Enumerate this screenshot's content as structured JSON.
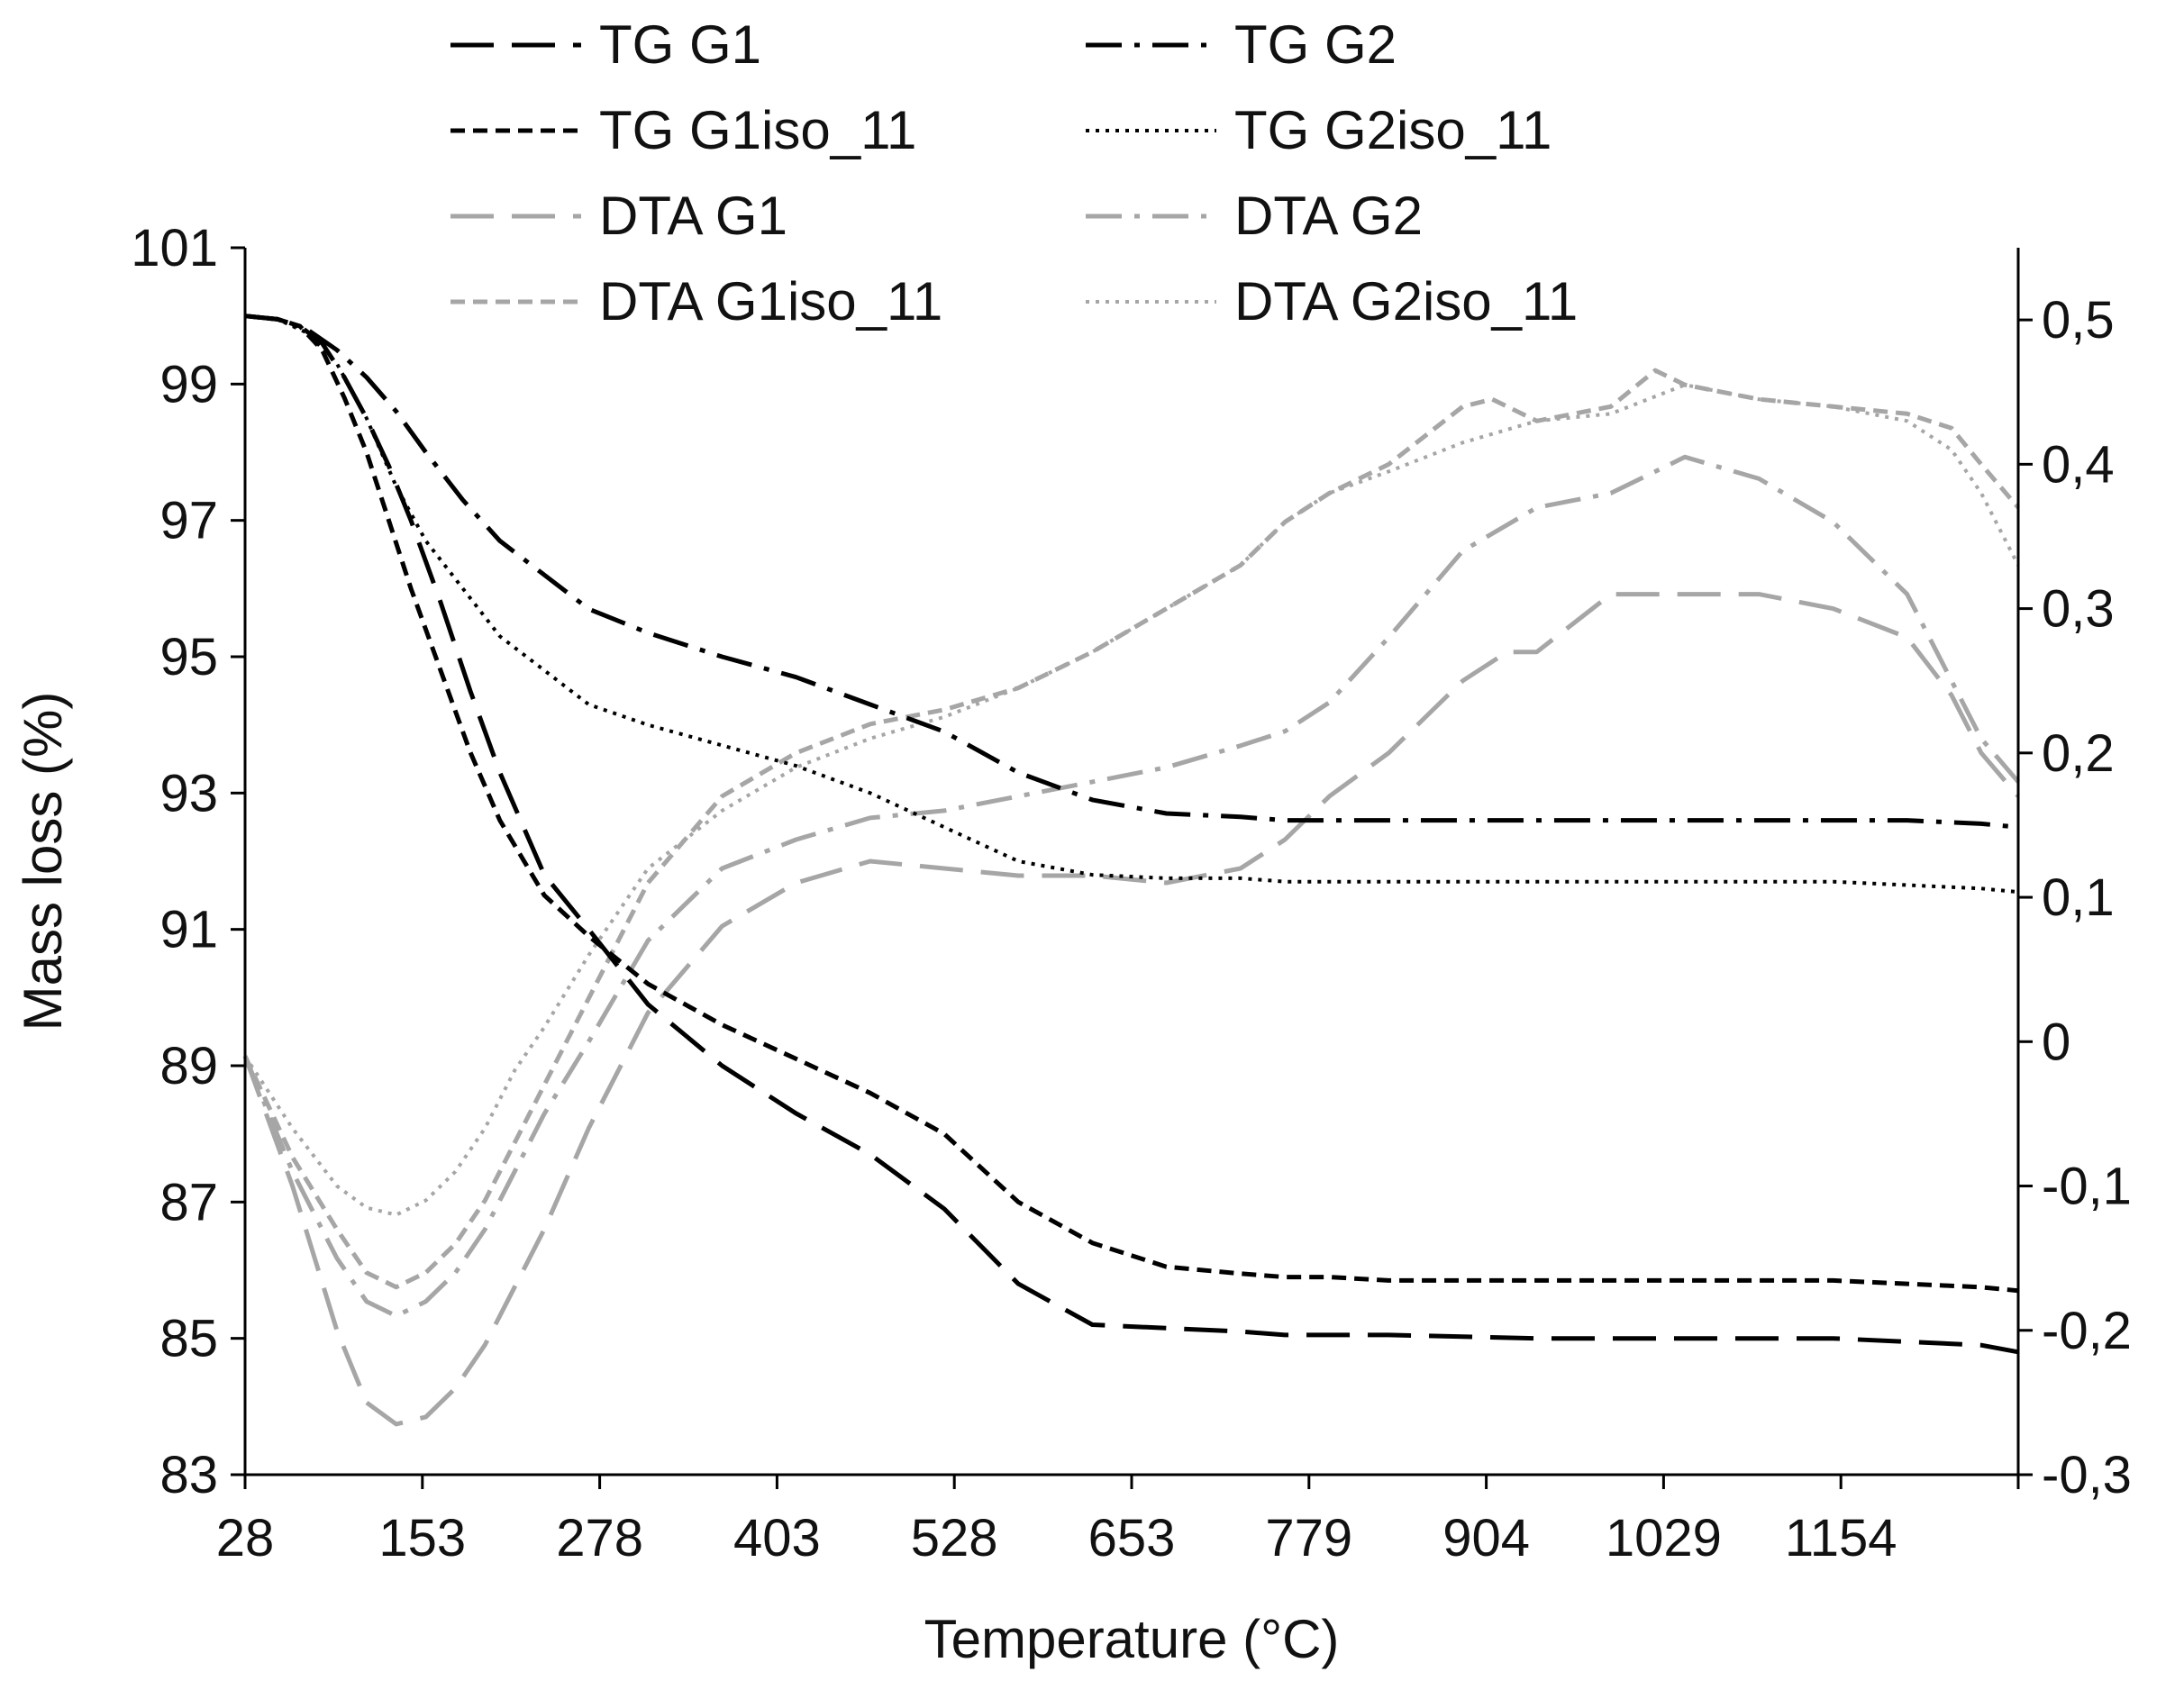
{
  "chart_data": {
    "type": "line",
    "title": "",
    "xlabel": "Temperature (°C)",
    "ylabel": "Mass loss (%)",
    "y2label": "",
    "xlim": [
      28,
      1225
    ],
    "ylim": [
      83,
      101
    ],
    "y2lim": [
      -0.3,
      0.55
    ],
    "x_ticks": [
      "28",
      "153",
      "278",
      "403",
      "528",
      "653",
      "779",
      "904",
      "1029",
      "1154"
    ],
    "y_ticks": [
      "83",
      "85",
      "87",
      "89",
      "91",
      "93",
      "95",
      "97",
      "99",
      "101"
    ],
    "y2_ticks": [
      "-0,3",
      "-0,2",
      "-0,1",
      "0",
      "0,1",
      "0,2",
      "0,3",
      "0,4",
      "0,5"
    ],
    "legend": "top",
    "grid": false,
    "series": [
      {
        "name": "TG G1",
        "axis": "left",
        "color": "#000000",
        "dash": "long",
        "x": [
          28,
          50,
          65,
          80,
          95,
          110,
          125,
          140,
          160,
          180,
          200,
          230,
          260,
          300,
          350,
          400,
          450,
          500,
          550,
          600,
          650,
          700,
          730,
          760,
          800,
          900,
          1000,
          1100,
          1150,
          1200,
          1225
        ],
        "y": [
          100,
          99.95,
          99.85,
          99.6,
          99.1,
          98.5,
          97.8,
          97,
          95.8,
          94.5,
          93.3,
          91.8,
          91.0,
          89.9,
          89.0,
          88.3,
          87.7,
          86.9,
          85.8,
          85.2,
          85.15,
          85.1,
          85.05,
          85.05,
          85.05,
          85.0,
          85.0,
          85.0,
          84.95,
          84.9,
          84.8
        ]
      },
      {
        "name": "TG G2",
        "axis": "left",
        "color": "#000000",
        "dash": "dashdot",
        "x": [
          28,
          50,
          70,
          90,
          110,
          130,
          150,
          175,
          200,
          230,
          260,
          300,
          350,
          400,
          450,
          500,
          550,
          600,
          650,
          700,
          730,
          760,
          800,
          900,
          1000,
          1100,
          1150,
          1200,
          1225
        ],
        "y": [
          100,
          99.95,
          99.8,
          99.5,
          99.1,
          98.6,
          98.0,
          97.3,
          96.7,
          96.2,
          95.7,
          95.35,
          95.0,
          94.7,
          94.3,
          93.9,
          93.3,
          92.9,
          92.7,
          92.65,
          92.6,
          92.6,
          92.6,
          92.6,
          92.6,
          92.6,
          92.6,
          92.55,
          92.5
        ]
      },
      {
        "name": "TG G1iso_11",
        "axis": "left",
        "color": "#000000",
        "dash": "short",
        "x": [
          28,
          50,
          65,
          80,
          95,
          110,
          125,
          140,
          160,
          180,
          200,
          230,
          260,
          300,
          350,
          400,
          450,
          500,
          550,
          600,
          650,
          700,
          730,
          760,
          800,
          900,
          1000,
          1100,
          1150,
          1200,
          1225
        ],
        "y": [
          100,
          99.95,
          99.85,
          99.5,
          98.8,
          98.0,
          97.0,
          96.0,
          94.8,
          93.6,
          92.6,
          91.5,
          90.9,
          90.2,
          89.6,
          89.1,
          88.6,
          88.0,
          87.0,
          86.4,
          86.05,
          85.95,
          85.9,
          85.9,
          85.85,
          85.85,
          85.85,
          85.85,
          85.8,
          85.75,
          85.7
        ]
      },
      {
        "name": "TG G2iso_11",
        "axis": "left",
        "color": "#000000",
        "dash": "dot",
        "x": [
          28,
          50,
          70,
          90,
          110,
          130,
          150,
          175,
          200,
          230,
          260,
          300,
          350,
          400,
          450,
          500,
          550,
          600,
          650,
          700,
          730,
          760,
          800,
          900,
          1000,
          1100,
          1150,
          1200,
          1225
        ],
        "y": [
          100,
          99.95,
          99.75,
          99.3,
          98.5,
          97.5,
          96.7,
          96.0,
          95.3,
          94.8,
          94.3,
          94.0,
          93.7,
          93.4,
          93.0,
          92.5,
          92.0,
          91.8,
          91.75,
          91.75,
          91.7,
          91.7,
          91.7,
          91.7,
          91.7,
          91.7,
          91.65,
          91.6,
          91.55
        ]
      },
      {
        "name": "DTA G1",
        "axis": "right",
        "color": "#a6a6a6",
        "dash": "long",
        "x": [
          28,
          60,
          90,
          110,
          130,
          150,
          170,
          190,
          210,
          230,
          260,
          300,
          350,
          400,
          450,
          500,
          550,
          600,
          650,
          700,
          730,
          760,
          800,
          850,
          880,
          900,
          950,
          980,
          1000,
          1050,
          1100,
          1150,
          1180,
          1200,
          1225
        ],
        "y": [
          -0.01,
          -0.1,
          -0.2,
          -0.25,
          -0.265,
          -0.26,
          -0.24,
          -0.21,
          -0.17,
          -0.13,
          -0.06,
          0.02,
          0.08,
          0.11,
          0.125,
          0.12,
          0.115,
          0.115,
          0.11,
          0.12,
          0.14,
          0.17,
          0.2,
          0.25,
          0.27,
          0.27,
          0.31,
          0.31,
          0.31,
          0.31,
          0.3,
          0.28,
          0.24,
          0.2,
          0.17
        ]
      },
      {
        "name": "DTA G2",
        "axis": "right",
        "color": "#a6a6a6",
        "dash": "dashdot",
        "x": [
          28,
          60,
          90,
          110,
          130,
          150,
          170,
          190,
          210,
          230,
          260,
          300,
          350,
          400,
          450,
          500,
          550,
          600,
          650,
          700,
          730,
          760,
          800,
          850,
          900,
          950,
          1000,
          1050,
          1100,
          1150,
          1180,
          1200,
          1225
        ],
        "y": [
          -0.01,
          -0.09,
          -0.15,
          -0.18,
          -0.19,
          -0.18,
          -0.16,
          -0.13,
          -0.09,
          -0.05,
          0.0,
          0.07,
          0.12,
          0.14,
          0.155,
          0.16,
          0.17,
          0.18,
          0.19,
          0.205,
          0.215,
          0.235,
          0.28,
          0.34,
          0.37,
          0.38,
          0.405,
          0.39,
          0.36,
          0.31,
          0.25,
          0.21,
          0.18
        ]
      },
      {
        "name": "DTA G1iso_11",
        "axis": "right",
        "color": "#a6a6a6",
        "dash": "short",
        "x": [
          28,
          60,
          90,
          110,
          130,
          150,
          170,
          190,
          210,
          230,
          260,
          300,
          350,
          400,
          450,
          500,
          550,
          600,
          650,
          700,
          730,
          760,
          800,
          850,
          870,
          900,
          950,
          980,
          1000,
          1050,
          1100,
          1150,
          1180,
          1200,
          1225
        ],
        "y": [
          -0.01,
          -0.08,
          -0.13,
          -0.16,
          -0.17,
          -0.16,
          -0.14,
          -0.11,
          -0.07,
          -0.03,
          0.03,
          0.11,
          0.17,
          0.2,
          0.22,
          0.23,
          0.245,
          0.27,
          0.3,
          0.33,
          0.36,
          0.38,
          0.4,
          0.44,
          0.445,
          0.43,
          0.44,
          0.465,
          0.455,
          0.445,
          0.44,
          0.435,
          0.425,
          0.4,
          0.37
        ]
      },
      {
        "name": "DTA G2iso_11",
        "axis": "right",
        "color": "#a6a6a6",
        "dash": "dot",
        "x": [
          28,
          60,
          90,
          110,
          130,
          150,
          170,
          190,
          210,
          230,
          260,
          300,
          350,
          400,
          450,
          500,
          550,
          600,
          650,
          700,
          730,
          760,
          800,
          850,
          900,
          950,
          1000,
          1050,
          1100,
          1150,
          1180,
          1200,
          1225
        ],
        "y": [
          -0.01,
          -0.06,
          -0.1,
          -0.115,
          -0.12,
          -0.11,
          -0.09,
          -0.06,
          -0.02,
          0.01,
          0.06,
          0.12,
          0.16,
          0.19,
          0.21,
          0.225,
          0.245,
          0.27,
          0.3,
          0.33,
          0.36,
          0.38,
          0.395,
          0.415,
          0.43,
          0.435,
          0.455,
          0.445,
          0.44,
          0.43,
          0.41,
          0.38,
          0.33
        ]
      }
    ]
  }
}
